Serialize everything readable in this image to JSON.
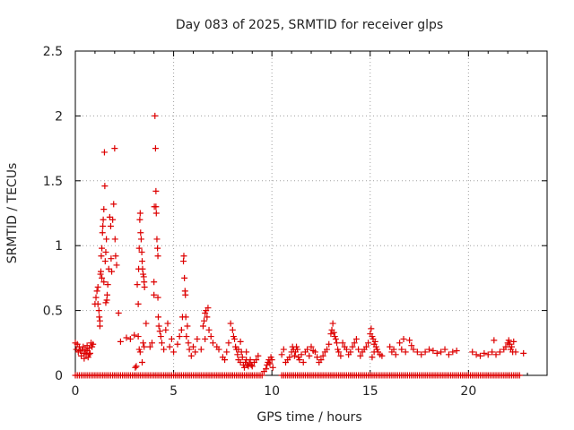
{
  "chart_data": {
    "type": "scatter",
    "title": "Day 083 of 2025, SRMTID for receiver glps",
    "xlabel": "GPS time / hours",
    "ylabel": "SRMTID / TECUs",
    "xlim": [
      0,
      24
    ],
    "ylim": [
      0,
      2.5
    ],
    "xticks": [
      0,
      5,
      10,
      15,
      20
    ],
    "xtick_labels": [
      "0",
      "5",
      "10",
      "15",
      "20"
    ],
    "yticks": [
      0,
      0.5,
      1,
      1.5,
      2,
      2.5
    ],
    "ytick_labels": [
      "0",
      "0.5",
      "1",
      "1.5",
      "2",
      "2.5"
    ],
    "grid": true,
    "marker": "+",
    "color": "#dd0000",
    "series": [
      {
        "name": "SRMTID",
        "points": [
          [
            0.0,
            0.25
          ],
          [
            0.05,
            0.2
          ],
          [
            0.1,
            0.24
          ],
          [
            0.15,
            0.18
          ],
          [
            0.2,
            0.22
          ],
          [
            0.3,
            0.15
          ],
          [
            0.35,
            0.2
          ],
          [
            0.4,
            0.22
          ],
          [
            0.45,
            0.17
          ],
          [
            0.5,
            0.2
          ],
          [
            0.55,
            0.16
          ],
          [
            0.6,
            0.19
          ],
          [
            0.65,
            0.14
          ],
          [
            0.7,
            0.21
          ],
          [
            0.75,
            0.17
          ],
          [
            0.8,
            0.25
          ],
          [
            0.85,
            0.22
          ],
          [
            0.9,
            0.24
          ],
          [
            0.25,
            0.19
          ],
          [
            0.45,
            0.13
          ],
          [
            0.6,
            0.23
          ],
          [
            0.7,
            0.16
          ],
          [
            1.0,
            0.55
          ],
          [
            1.05,
            0.6
          ],
          [
            1.1,
            0.65
          ],
          [
            1.15,
            0.68
          ],
          [
            1.2,
            0.5
          ],
          [
            1.22,
            0.45
          ],
          [
            1.25,
            0.42
          ],
          [
            1.28,
            0.78
          ],
          [
            1.3,
            0.8
          ],
          [
            1.32,
            0.92
          ],
          [
            1.35,
            0.98
          ],
          [
            1.38,
            1.1
          ],
          [
            1.4,
            1.15
          ],
          [
            1.42,
            1.2
          ],
          [
            1.45,
            1.28
          ],
          [
            1.48,
            1.72
          ],
          [
            1.5,
            1.46
          ],
          [
            1.52,
            0.88
          ],
          [
            1.55,
            0.95
          ],
          [
            1.58,
            1.05
          ],
          [
            1.6,
            0.58
          ],
          [
            1.62,
            0.62
          ],
          [
            1.65,
            0.7
          ],
          [
            1.7,
            0.82
          ],
          [
            1.75,
            1.22
          ],
          [
            1.8,
            1.15
          ],
          [
            1.82,
            0.9
          ],
          [
            1.85,
            0.8
          ],
          [
            1.9,
            1.2
          ],
          [
            1.95,
            1.32
          ],
          [
            2.0,
            1.75
          ],
          [
            2.02,
            1.05
          ],
          [
            2.05,
            0.92
          ],
          [
            2.1,
            0.85
          ],
          [
            1.35,
            0.75
          ],
          [
            1.45,
            0.72
          ],
          [
            1.55,
            0.56
          ],
          [
            2.2,
            0.48
          ],
          [
            1.15,
            0.55
          ],
          [
            1.25,
            0.38
          ],
          [
            2.3,
            0.26
          ],
          [
            2.6,
            0.29
          ],
          [
            2.8,
            0.28
          ],
          [
            3.0,
            0.31
          ],
          [
            3.05,
            0.06
          ],
          [
            3.1,
            0.07
          ],
          [
            3.15,
            0.7
          ],
          [
            3.2,
            0.55
          ],
          [
            3.22,
            0.82
          ],
          [
            3.25,
            0.98
          ],
          [
            3.28,
            1.2
          ],
          [
            3.3,
            1.25
          ],
          [
            3.32,
            1.1
          ],
          [
            3.35,
            1.05
          ],
          [
            3.38,
            0.95
          ],
          [
            3.4,
            0.88
          ],
          [
            3.42,
            0.82
          ],
          [
            3.45,
            0.78
          ],
          [
            3.48,
            0.76
          ],
          [
            3.5,
            0.72
          ],
          [
            3.52,
            0.68
          ],
          [
            3.2,
            0.3
          ],
          [
            3.3,
            0.18
          ],
          [
            3.4,
            0.1
          ],
          [
            3.45,
            0.25
          ],
          [
            3.5,
            0.22
          ],
          [
            3.25,
            0.2
          ],
          [
            3.6,
            0.4
          ],
          [
            3.8,
            0.22
          ],
          [
            3.9,
            0.25
          ],
          [
            4.0,
            0.62
          ],
          [
            4.02,
            1.3
          ],
          [
            4.05,
            2.0
          ],
          [
            4.08,
            1.75
          ],
          [
            4.1,
            1.42
          ],
          [
            4.12,
            1.25
          ],
          [
            4.15,
            1.05
          ],
          [
            4.18,
            0.98
          ],
          [
            4.2,
            0.6
          ],
          [
            4.22,
            0.45
          ],
          [
            4.25,
            0.38
          ],
          [
            4.3,
            0.34
          ],
          [
            4.35,
            0.3
          ],
          [
            4.4,
            0.25
          ],
          [
            4.5,
            0.2
          ],
          [
            4.6,
            0.35
          ],
          [
            4.7,
            0.4
          ],
          [
            4.8,
            0.22
          ],
          [
            4.9,
            0.28
          ],
          [
            5.0,
            0.18
          ],
          [
            4.0,
            0.72
          ],
          [
            4.1,
            1.3
          ],
          [
            4.2,
            0.92
          ],
          [
            5.2,
            0.24
          ],
          [
            5.3,
            0.3
          ],
          [
            5.4,
            0.35
          ],
          [
            5.45,
            0.45
          ],
          [
            5.5,
            0.88
          ],
          [
            5.52,
            0.92
          ],
          [
            5.55,
            0.75
          ],
          [
            5.58,
            0.65
          ],
          [
            5.6,
            0.62
          ],
          [
            5.62,
            0.45
          ],
          [
            5.65,
            0.3
          ],
          [
            5.7,
            0.38
          ],
          [
            5.75,
            0.25
          ],
          [
            5.8,
            0.2
          ],
          [
            5.9,
            0.15
          ],
          [
            6.0,
            0.22
          ],
          [
            6.1,
            0.18
          ],
          [
            6.2,
            0.28
          ],
          [
            6.4,
            0.2
          ],
          [
            6.5,
            0.38
          ],
          [
            6.55,
            0.42
          ],
          [
            6.6,
            0.48
          ],
          [
            6.65,
            0.5
          ],
          [
            6.7,
            0.45
          ],
          [
            6.75,
            0.52
          ],
          [
            6.8,
            0.35
          ],
          [
            6.9,
            0.3
          ],
          [
            7.0,
            0.25
          ],
          [
            6.6,
            0.28
          ],
          [
            7.2,
            0.22
          ],
          [
            7.3,
            0.2
          ],
          [
            7.5,
            0.14
          ],
          [
            7.6,
            0.12
          ],
          [
            7.7,
            0.18
          ],
          [
            7.8,
            0.25
          ],
          [
            7.9,
            0.4
          ],
          [
            8.0,
            0.35
          ],
          [
            8.05,
            0.3
          ],
          [
            8.1,
            0.28
          ],
          [
            8.15,
            0.22
          ],
          [
            8.2,
            0.2
          ],
          [
            8.25,
            0.16
          ],
          [
            8.3,
            0.12
          ],
          [
            8.4,
            0.1
          ],
          [
            8.45,
            0.18
          ],
          [
            8.5,
            0.14
          ],
          [
            8.55,
            0.08
          ],
          [
            8.6,
            0.06
          ],
          [
            8.65,
            0.1
          ],
          [
            8.7,
            0.12
          ],
          [
            8.75,
            0.08
          ],
          [
            8.8,
            0.07
          ],
          [
            8.85,
            0.09
          ],
          [
            8.9,
            0.12
          ],
          [
            8.95,
            0.08
          ],
          [
            9.0,
            0.07
          ],
          [
            9.1,
            0.1
          ],
          [
            9.2,
            0.12
          ],
          [
            9.3,
            0.15
          ],
          [
            8.3,
            0.2
          ],
          [
            8.4,
            0.26
          ],
          [
            8.7,
            0.18
          ],
          [
            9.6,
            0.03
          ],
          [
            9.7,
            0.05
          ],
          [
            9.75,
            0.08
          ],
          [
            9.8,
            0.1
          ],
          [
            9.85,
            0.12
          ],
          [
            9.9,
            0.09
          ],
          [
            9.95,
            0.14
          ],
          [
            10.0,
            0.12
          ],
          [
            10.05,
            0.06
          ],
          [
            10.5,
            0.16
          ],
          [
            10.6,
            0.2
          ],
          [
            10.7,
            0.1
          ],
          [
            10.8,
            0.12
          ],
          [
            10.9,
            0.14
          ],
          [
            11.0,
            0.18
          ],
          [
            11.05,
            0.22
          ],
          [
            11.1,
            0.2
          ],
          [
            11.15,
            0.15
          ],
          [
            11.2,
            0.18
          ],
          [
            11.25,
            0.22
          ],
          [
            11.3,
            0.2
          ],
          [
            11.35,
            0.14
          ],
          [
            11.4,
            0.12
          ],
          [
            11.5,
            0.16
          ],
          [
            11.6,
            0.1
          ],
          [
            11.7,
            0.18
          ],
          [
            11.8,
            0.2
          ],
          [
            11.9,
            0.15
          ],
          [
            12.0,
            0.22
          ],
          [
            12.1,
            0.19
          ],
          [
            12.2,
            0.18
          ],
          [
            12.3,
            0.14
          ],
          [
            12.4,
            0.1
          ],
          [
            12.5,
            0.12
          ],
          [
            12.6,
            0.15
          ],
          [
            12.7,
            0.18
          ],
          [
            12.8,
            0.2
          ],
          [
            12.9,
            0.24
          ],
          [
            13.0,
            0.32
          ],
          [
            13.05,
            0.35
          ],
          [
            13.1,
            0.4
          ],
          [
            13.15,
            0.33
          ],
          [
            13.2,
            0.3
          ],
          [
            13.25,
            0.28
          ],
          [
            13.3,
            0.25
          ],
          [
            13.35,
            0.2
          ],
          [
            13.4,
            0.18
          ],
          [
            13.5,
            0.15
          ],
          [
            13.6,
            0.25
          ],
          [
            13.7,
            0.22
          ],
          [
            13.8,
            0.2
          ],
          [
            13.9,
            0.16
          ],
          [
            14.0,
            0.18
          ],
          [
            14.1,
            0.22
          ],
          [
            14.2,
            0.25
          ],
          [
            14.3,
            0.28
          ],
          [
            14.4,
            0.2
          ],
          [
            14.5,
            0.15
          ],
          [
            14.6,
            0.18
          ],
          [
            14.7,
            0.2
          ],
          [
            14.8,
            0.22
          ],
          [
            14.9,
            0.25
          ],
          [
            15.0,
            0.32
          ],
          [
            15.05,
            0.36
          ],
          [
            15.1,
            0.3
          ],
          [
            15.15,
            0.28
          ],
          [
            15.2,
            0.24
          ],
          [
            15.25,
            0.26
          ],
          [
            15.3,
            0.22
          ],
          [
            15.35,
            0.2
          ],
          [
            15.4,
            0.18
          ],
          [
            15.5,
            0.16
          ],
          [
            15.6,
            0.15
          ],
          [
            15.1,
            0.14
          ],
          [
            15.2,
            0.18
          ],
          [
            16.0,
            0.22
          ],
          [
            16.1,
            0.18
          ],
          [
            16.2,
            0.2
          ],
          [
            16.3,
            0.16
          ],
          [
            16.5,
            0.25
          ],
          [
            16.6,
            0.2
          ],
          [
            16.7,
            0.28
          ],
          [
            16.8,
            0.18
          ],
          [
            17.0,
            0.27
          ],
          [
            17.1,
            0.23
          ],
          [
            17.2,
            0.2
          ],
          [
            17.4,
            0.18
          ],
          [
            17.6,
            0.16
          ],
          [
            17.8,
            0.18
          ],
          [
            18.0,
            0.2
          ],
          [
            18.2,
            0.19
          ],
          [
            18.4,
            0.17
          ],
          [
            18.6,
            0.18
          ],
          [
            18.8,
            0.2
          ],
          [
            19.0,
            0.16
          ],
          [
            19.2,
            0.18
          ],
          [
            19.4,
            0.19
          ],
          [
            20.2,
            0.18
          ],
          [
            20.4,
            0.16
          ],
          [
            20.6,
            0.15
          ],
          [
            20.8,
            0.17
          ],
          [
            21.0,
            0.16
          ],
          [
            21.2,
            0.18
          ],
          [
            21.4,
            0.16
          ],
          [
            21.6,
            0.18
          ],
          [
            21.8,
            0.2
          ],
          [
            21.9,
            0.22
          ],
          [
            22.0,
            0.25
          ],
          [
            22.05,
            0.27
          ],
          [
            22.1,
            0.24
          ],
          [
            22.15,
            0.2
          ],
          [
            22.2,
            0.22
          ],
          [
            22.25,
            0.18
          ],
          [
            22.3,
            0.26
          ],
          [
            22.4,
            0.18
          ],
          [
            22.8,
            0.17
          ],
          [
            21.3,
            0.27
          ]
        ]
      }
    ],
    "zero_band": {
      "y": 0,
      "x_ranges": [
        [
          0.0,
          9.5
        ],
        [
          10.5,
          22.6
        ]
      ],
      "step": 0.1
    }
  }
}
